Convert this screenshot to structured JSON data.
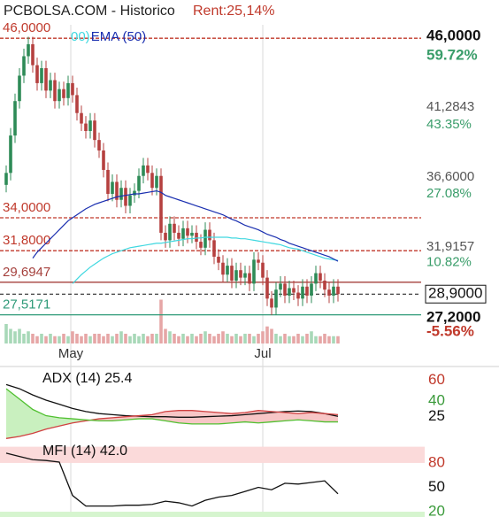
{
  "header": {
    "title": "PCBOLSA.COM - Historico",
    "rent": "Rent:25,14%"
  },
  "chart_data": [
    {
      "type": "candlestick",
      "x": [
        0,
        1,
        2,
        3,
        4,
        5,
        6,
        7,
        8,
        9,
        10,
        11,
        12,
        13,
        14,
        15,
        16,
        17,
        18,
        19,
        20,
        21,
        22,
        23,
        24,
        25,
        26,
        27,
        28,
        29,
        30,
        31,
        32,
        33,
        34,
        35,
        36,
        37,
        38,
        39,
        40,
        41,
        42,
        43,
        44,
        45,
        46,
        47,
        48,
        49,
        50,
        51,
        52,
        53,
        54,
        55,
        56,
        57,
        58,
        59,
        60,
        61,
        62,
        63,
        64,
        65,
        66,
        67,
        68,
        69,
        70,
        71,
        72,
        73,
        74,
        75
      ],
      "open": [
        36.2,
        37.0,
        39.5,
        41.8,
        43.5,
        44.8,
        45.6,
        44.2,
        43.0,
        44.0,
        42.5,
        43.2,
        41.8,
        42.6,
        42.0,
        43.0,
        42.2,
        41.0,
        40.3,
        39.8,
        40.5,
        39.2,
        38.5,
        37.2,
        35.6,
        36.4,
        35.2,
        36.0,
        34.8,
        35.5,
        35.8,
        36.8,
        37.5,
        37.0,
        36.0,
        36.8,
        33.0,
        32.5,
        33.6,
        33.0,
        32.6,
        33.3,
        32.8,
        33.0,
        32.4,
        32.0,
        33.2,
        32.5,
        31.4,
        31.0,
        30.2,
        30.8,
        29.8,
        30.5,
        30.0,
        30.3,
        29.6,
        31.2,
        31.0,
        30.0,
        28.6,
        28.0,
        29.2,
        29.6,
        28.8,
        29.3,
        29.0,
        28.6,
        29.4,
        28.8,
        29.6,
        30.3,
        29.8,
        29.2,
        28.8,
        29.4
      ],
      "high": [
        37.5,
        40.0,
        42.3,
        44.0,
        45.3,
        46.1,
        46.1,
        44.7,
        44.5,
        44.5,
        43.7,
        43.7,
        43.1,
        43.1,
        43.5,
        43.5,
        42.7,
        41.5,
        40.8,
        41.0,
        41.0,
        39.7,
        39.0,
        37.7,
        36.9,
        36.9,
        36.5,
        36.5,
        36.0,
        36.3,
        37.3,
        38.0,
        38.0,
        37.5,
        37.3,
        37.3,
        33.5,
        34.1,
        34.1,
        33.5,
        33.8,
        33.8,
        33.5,
        33.5,
        32.9,
        33.7,
        33.7,
        33.0,
        31.9,
        31.5,
        31.3,
        31.3,
        31.0,
        31.0,
        30.8,
        30.8,
        31.7,
        31.7,
        31.5,
        30.5,
        29.1,
        29.7,
        30.1,
        30.1,
        29.8,
        29.8,
        29.5,
        29.9,
        29.9,
        30.1,
        30.8,
        30.8,
        30.3,
        29.7,
        29.9,
        29.9
      ],
      "low": [
        35.7,
        36.5,
        39.0,
        41.3,
        43.0,
        44.3,
        43.7,
        42.5,
        42.5,
        42.0,
        42.0,
        41.3,
        41.3,
        41.5,
        41.5,
        41.7,
        40.5,
        39.8,
        39.3,
        39.3,
        38.7,
        38.0,
        36.7,
        35.1,
        35.1,
        34.7,
        34.7,
        34.3,
        34.3,
        35.0,
        35.3,
        36.3,
        36.5,
        35.5,
        35.5,
        32.5,
        32.0,
        32.0,
        32.5,
        32.1,
        32.1,
        32.3,
        32.3,
        31.9,
        31.5,
        31.5,
        32.0,
        30.9,
        30.5,
        29.7,
        29.7,
        29.3,
        29.3,
        29.5,
        29.5,
        29.1,
        29.1,
        30.5,
        29.5,
        28.1,
        27.5,
        27.5,
        28.7,
        28.3,
        28.3,
        28.5,
        28.1,
        28.1,
        28.3,
        28.3,
        29.1,
        29.3,
        28.7,
        28.3,
        28.3,
        28.4
      ],
      "close": [
        37.0,
        39.5,
        41.8,
        43.5,
        44.8,
        45.6,
        44.2,
        43.0,
        44.0,
        42.5,
        43.2,
        41.8,
        42.6,
        42.0,
        43.0,
        42.2,
        41.0,
        40.3,
        39.8,
        40.5,
        39.2,
        38.5,
        37.2,
        35.6,
        36.4,
        35.2,
        36.0,
        34.8,
        35.5,
        35.8,
        36.8,
        37.5,
        37.0,
        36.0,
        36.8,
        33.0,
        32.5,
        33.6,
        33.0,
        32.6,
        33.3,
        32.8,
        33.0,
        32.4,
        32.0,
        33.2,
        32.5,
        31.4,
        31.0,
        30.2,
        30.8,
        29.8,
        30.5,
        30.0,
        30.3,
        29.6,
        31.2,
        31.0,
        30.0,
        28.6,
        28.0,
        29.2,
        29.6,
        28.8,
        29.3,
        29.0,
        28.6,
        29.4,
        28.8,
        29.6,
        30.3,
        29.8,
        29.2,
        28.8,
        29.4,
        28.9
      ],
      "up_color": "#2e8b57",
      "down_color": "#b5403f",
      "volume": {
        "values": [
          4,
          3,
          2.5,
          3,
          2,
          2.5,
          2,
          1.5,
          2,
          1.5,
          2,
          1.5,
          1.5,
          2,
          1.5,
          2.5,
          2,
          1.5,
          2,
          1.5,
          2,
          2,
          1.5,
          2,
          1.5,
          2,
          2.5,
          2,
          1.5,
          2,
          1.5,
          2,
          1.5,
          2,
          2,
          9,
          3,
          2.5,
          2,
          1.5,
          2,
          1.5,
          2,
          1.5,
          2,
          2.5,
          2,
          1.5,
          2,
          2.5,
          2,
          1.5,
          2,
          1.5,
          2,
          2,
          1.5,
          2,
          2.5,
          3.5,
          3,
          2,
          1.5,
          2,
          1.5,
          1.5,
          2,
          1.5,
          2,
          2.5,
          1.5,
          1.5,
          2,
          1.5,
          1.5,
          1.5
        ],
        "lim": [
          0,
          10
        ],
        "up_color": "#a8d8b8",
        "down_color": "#e6a6a6"
      },
      "series": [
        {
          "name": "00)",
          "color": "#40d8e0",
          "values": [
            null,
            null,
            null,
            null,
            null,
            null,
            null,
            null,
            null,
            null,
            null,
            null,
            null,
            null,
            null,
            29.6,
            29.9,
            30.2,
            30.45,
            30.7,
            30.9,
            31.1,
            31.3,
            31.45,
            31.6,
            31.7,
            31.8,
            31.9,
            32.0,
            32.05,
            32.1,
            32.15,
            32.2,
            32.25,
            32.3,
            32.3,
            32.35,
            32.4,
            32.45,
            32.5,
            32.55,
            32.6,
            32.6,
            32.65,
            32.65,
            32.7,
            32.7,
            32.7,
            32.7,
            32.7,
            32.7,
            32.65,
            32.65,
            32.6,
            32.6,
            32.55,
            32.5,
            32.45,
            32.4,
            32.35,
            32.3,
            32.25,
            32.2,
            32.1,
            32.0,
            31.95,
            31.9,
            31.8,
            31.7,
            31.6,
            31.5,
            31.4,
            31.3,
            31.25,
            31.2,
            31.15
          ]
        },
        {
          "name": "EMA (50)",
          "color": "#1a2fb0",
          "values": [
            null,
            null,
            null,
            null,
            null,
            null,
            31.3,
            31.7,
            32.0,
            32.3,
            32.6,
            32.9,
            33.2,
            33.5,
            33.8,
            34.0,
            34.2,
            34.4,
            34.6,
            34.75,
            34.9,
            35.0,
            35.1,
            35.2,
            35.3,
            35.4,
            35.45,
            35.5,
            35.55,
            35.6,
            35.6,
            35.65,
            35.7,
            35.75,
            35.8,
            35.7,
            35.5,
            35.4,
            35.3,
            35.2,
            35.1,
            35.0,
            34.9,
            34.8,
            34.7,
            34.6,
            34.5,
            34.4,
            34.3,
            34.2,
            34.05,
            33.9,
            33.8,
            33.65,
            33.5,
            33.4,
            33.3,
            33.2,
            33.05,
            32.9,
            32.8,
            32.7,
            32.55,
            32.45,
            32.3,
            32.2,
            32.1,
            32.0,
            31.9,
            31.8,
            31.7,
            31.6,
            31.5,
            31.4,
            31.25,
            31.1
          ]
        }
      ],
      "levels": [
        {
          "value": 46,
          "label": "46,0000",
          "color": "#c0392b",
          "dashed": true
        },
        {
          "value": 34,
          "label": "34,0000",
          "color": "#c0392b",
          "dashed": true
        },
        {
          "value": 31.8,
          "label": "31,8000",
          "color": "#c0392b",
          "dashed": true
        },
        {
          "value": 29.6947,
          "label": "29,6947",
          "color": "#a5403c",
          "dashed": false
        },
        {
          "value": 27.5171,
          "label": "27,5171",
          "color": "#2e9a78",
          "dashed": false
        }
      ],
      "last_price": {
        "value": 28.9,
        "label": "28,9000"
      },
      "xlim": [
        -1.4,
        93.8
      ],
      "xticks": [
        {
          "value": 14.6,
          "label": "May"
        },
        {
          "value": 58,
          "label": "Jul"
        }
      ],
      "ylim": [
        25.6,
        46.9
      ],
      "yticks": [
        {
          "value": 46,
          "label": "46,0000"
        },
        {
          "value": 41.2843,
          "label": "41,2843"
        },
        {
          "value": 36.6,
          "label": "36,6000"
        },
        {
          "value": 31.9157,
          "label": "31,9157"
        },
        {
          "value": 27.2,
          "label": "27,2000"
        }
      ],
      "y2lim": [
        -8.28,
        67.04
      ],
      "y2ticks": [
        {
          "value": 59.72,
          "label": "59.72%"
        },
        {
          "value": 43.35,
          "label": "43.35%"
        },
        {
          "value": 27.08,
          "label": "27.08%"
        },
        {
          "value": 10.82,
          "label": "10.82%"
        },
        {
          "value": -5.56,
          "label": "-5.56%"
        }
      ]
    },
    {
      "type": "line",
      "title": "ADX (14) 25.4",
      "x": [
        0,
        3,
        6,
        9,
        12,
        15,
        18,
        21,
        24,
        27,
        30,
        33,
        36,
        39,
        42,
        45,
        48,
        51,
        54,
        57,
        60,
        63,
        66,
        69,
        72,
        75
      ],
      "xlim": [
        -1.4,
        93.8
      ],
      "ylim": [
        0,
        70
      ],
      "yticks": [
        60,
        40,
        25
      ],
      "ytick_colors": [
        "#c0392b",
        "#3a9a3a",
        "#111111"
      ],
      "fill_between": [
        1,
        2
      ],
      "fill_colors": [
        "#f7c6c6",
        "#c9f0bf"
      ],
      "series": [
        {
          "color": "#111111",
          "values": [
            56,
            52,
            46,
            41,
            37,
            33,
            30,
            28,
            27,
            26,
            25.5,
            25,
            25,
            24.5,
            24.5,
            25,
            25.5,
            26,
            27,
            28,
            29,
            30,
            30.5,
            30,
            28,
            25.4
          ]
        },
        {
          "color": "#d04040",
          "values": [
            4,
            6,
            9,
            13,
            16,
            19,
            21,
            23,
            24,
            25,
            26,
            27,
            30,
            31,
            31,
            30,
            29,
            28,
            29,
            31,
            30,
            29,
            28,
            29,
            28,
            27
          ]
        },
        {
          "color": "#50c030",
          "values": [
            52,
            42,
            32,
            26,
            24,
            23,
            22,
            21,
            21,
            22,
            23,
            23,
            21,
            19,
            18,
            18,
            18,
            19,
            20,
            19,
            20,
            21,
            22,
            21,
            20,
            20
          ]
        }
      ]
    },
    {
      "type": "line",
      "title": "MFI (14) 42.0",
      "x": [
        0,
        3,
        6,
        9,
        12,
        15,
        18,
        21,
        24,
        27,
        30,
        33,
        36,
        39,
        42,
        45,
        48,
        51,
        54,
        57,
        60,
        63,
        66,
        69,
        72,
        75
      ],
      "xlim": [
        -1.4,
        93.8
      ],
      "ylim": [
        13.5,
        105
      ],
      "yticks": [
        80,
        50,
        20
      ],
      "ytick_colors": [
        "#c0392b",
        "#111111",
        "#3a9a3a"
      ],
      "bands": [
        {
          "from": 80,
          "to": 100,
          "color": "#fbdada"
        },
        {
          "from": 13.5,
          "to": 20,
          "color": "#d6f5cf"
        }
      ],
      "series": [
        {
          "color": "#111111",
          "values": [
            92,
            88,
            84,
            83,
            81,
            40,
            27,
            27,
            27,
            28,
            28,
            29,
            33,
            31,
            27,
            34,
            38,
            40,
            45,
            50,
            47,
            55,
            54,
            56,
            58,
            42
          ]
        }
      ]
    }
  ]
}
